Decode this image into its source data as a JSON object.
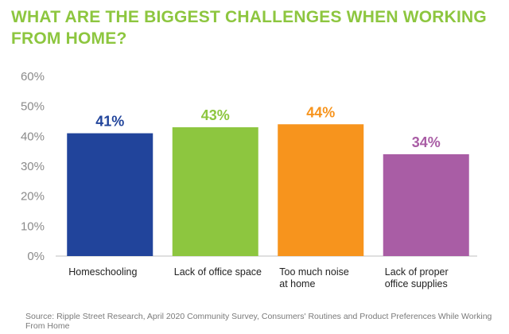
{
  "chart_data": {
    "type": "bar",
    "title": "WHAT ARE THE BIGGEST CHALLENGES WHEN WORKING FROM HOME?",
    "categories": [
      "Homeschooling",
      "Lack of office space",
      "Too much noise\nat home",
      "Lack of proper\noffice supplies"
    ],
    "values": [
      41,
      43,
      44,
      34
    ],
    "data_labels": [
      "41%",
      "43%",
      "44%",
      "34%"
    ],
    "colors": [
      "#21449b",
      "#8dc63f",
      "#f7941d",
      "#a95da5"
    ],
    "yticks": [
      "0%",
      "10%",
      "20%",
      "30%",
      "40%",
      "50%",
      "60%"
    ],
    "ylim": [
      0,
      60
    ],
    "grid": false,
    "source": "Source: Ripple Street Research, April 2020 Community Survey, Consumers' Routines and Product Preferences While Working From Home"
  }
}
